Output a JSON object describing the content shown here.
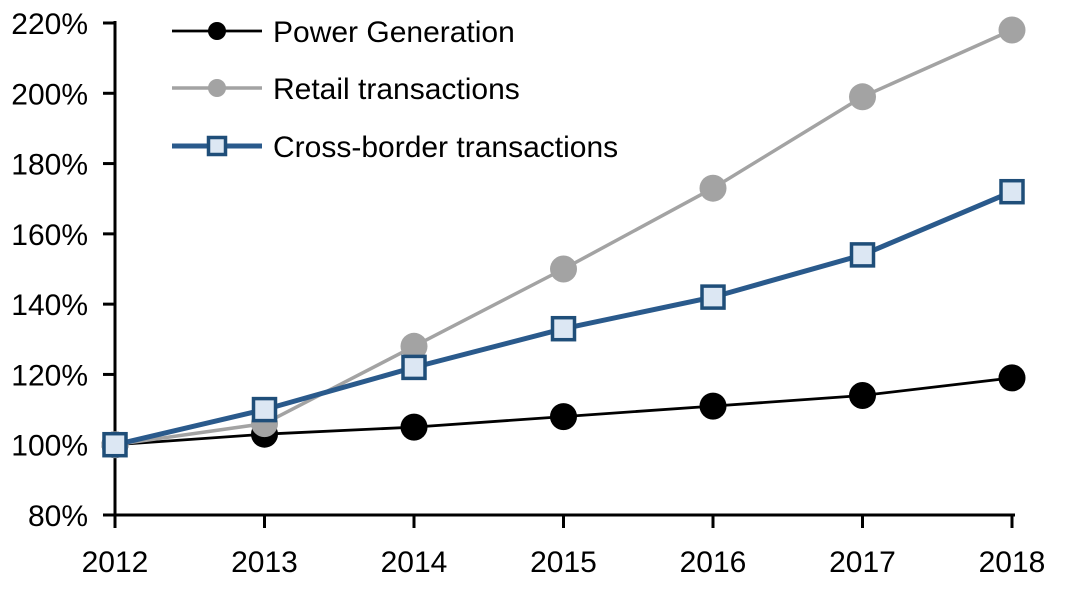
{
  "chart_data": {
    "type": "line",
    "x": [
      "2012",
      "2013",
      "2014",
      "2015",
      "2016",
      "2017",
      "2018"
    ],
    "series": [
      {
        "name": "Power Generation",
        "color": "#000000",
        "marker": "circle",
        "marker_fill": "#000000",
        "line_width": 2.8,
        "values": [
          100,
          103,
          105,
          108,
          111,
          114,
          119
        ]
      },
      {
        "name": "Retail transactions",
        "color": "#A3A3A3",
        "marker": "circle",
        "marker_fill": "#A3A3A3",
        "line_width": 3.5,
        "values": [
          100,
          106,
          128,
          150,
          173,
          199,
          218
        ]
      },
      {
        "name": "Cross-border transactions",
        "color": "#2A5A8C",
        "marker": "square",
        "marker_fill": "#DCE7F3",
        "marker_stroke": "#1F4E79",
        "line_width": 5,
        "values": [
          100,
          110,
          122,
          133,
          142,
          154,
          172
        ]
      }
    ],
    "ylim": [
      80,
      220
    ],
    "ytick_step": 20,
    "ytick_labels": [
      "220%",
      "200%",
      "180%",
      "160%",
      "140%",
      "120%",
      "100%",
      "80%"
    ],
    "xtick_labels": [
      "2012",
      "2013",
      "2014",
      "2015",
      "2016",
      "2017",
      "2018"
    ],
    "unit": "%",
    "grid": false,
    "legend_position": "top-left",
    "axis_color": "#000000"
  }
}
